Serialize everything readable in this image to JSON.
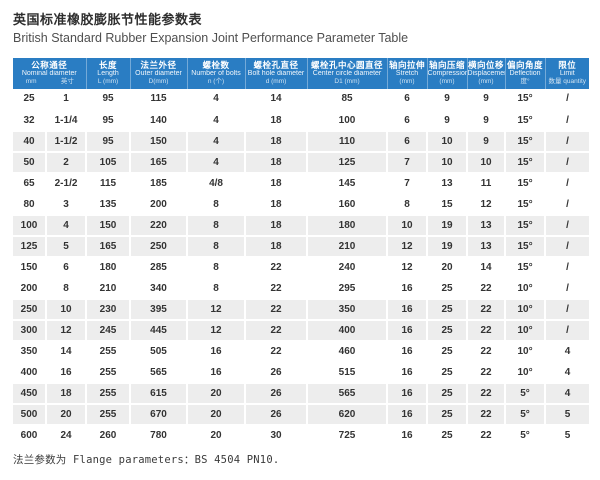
{
  "title": {
    "zh": "英国标准橡胶膨胀节性能参数表",
    "en": "British Standard Rubber Expansion Joint Performance Parameter Table"
  },
  "colors": {
    "header_bg": "#2a7dc3",
    "row_alt_bg": "#ededed",
    "header_text": "#ffffff",
    "body_text": "#333333"
  },
  "table": {
    "header": {
      "nominal": {
        "zh": "公称通径",
        "en": "Nominal diameter",
        "unit_mm": "mm",
        "unit_inch": "英寸"
      },
      "cols": [
        {
          "zh": "长度",
          "en": "Length",
          "unit": "L (mm)"
        },
        {
          "zh": "法兰外径",
          "en": "Outer diameter",
          "unit": "D(mm)"
        },
        {
          "zh": "螺栓数",
          "en": "Number of bolts",
          "unit": "n (个)"
        },
        {
          "zh": "螺栓孔直径",
          "en": "Bolt hole diameter",
          "unit": "d (mm)"
        },
        {
          "zh": "螺栓孔中心圆直径",
          "en": "Center circle diameter",
          "unit": "D1 (mm)"
        },
        {
          "zh": "轴向拉伸",
          "en": "Stretch",
          "unit": "(mm)"
        },
        {
          "zh": "轴向压缩",
          "en": "Compression",
          "unit": "(mm)"
        },
        {
          "zh": "横向位移",
          "en": "Displacement",
          "unit": "(mm)"
        },
        {
          "zh": "偏向角度",
          "en": "Deflection",
          "unit": "度°"
        },
        {
          "zh": "限位",
          "en": "Limit",
          "unit": "数量 quantity"
        }
      ]
    },
    "rows": [
      [
        "25",
        "1",
        "95",
        "115",
        "4",
        "14",
        "85",
        "6",
        "9",
        "9",
        "15°",
        "/"
      ],
      [
        "32",
        "1-1/4",
        "95",
        "140",
        "4",
        "18",
        "100",
        "6",
        "9",
        "9",
        "15°",
        "/"
      ],
      [
        "40",
        "1-1/2",
        "95",
        "150",
        "4",
        "18",
        "110",
        "6",
        "10",
        "9",
        "15°",
        "/"
      ],
      [
        "50",
        "2",
        "105",
        "165",
        "4",
        "18",
        "125",
        "7",
        "10",
        "10",
        "15°",
        "/"
      ],
      [
        "65",
        "2-1/2",
        "115",
        "185",
        "4/8",
        "18",
        "145",
        "7",
        "13",
        "11",
        "15°",
        "/"
      ],
      [
        "80",
        "3",
        "135",
        "200",
        "8",
        "18",
        "160",
        "8",
        "15",
        "12",
        "15°",
        "/"
      ],
      [
        "100",
        "4",
        "150",
        "220",
        "8",
        "18",
        "180",
        "10",
        "19",
        "13",
        "15°",
        "/"
      ],
      [
        "125",
        "5",
        "165",
        "250",
        "8",
        "18",
        "210",
        "12",
        "19",
        "13",
        "15°",
        "/"
      ],
      [
        "150",
        "6",
        "180",
        "285",
        "8",
        "22",
        "240",
        "12",
        "20",
        "14",
        "15°",
        "/"
      ],
      [
        "200",
        "8",
        "210",
        "340",
        "8",
        "22",
        "295",
        "16",
        "25",
        "22",
        "10°",
        "/"
      ],
      [
        "250",
        "10",
        "230",
        "395",
        "12",
        "22",
        "350",
        "16",
        "25",
        "22",
        "10°",
        "/"
      ],
      [
        "300",
        "12",
        "245",
        "445",
        "12",
        "22",
        "400",
        "16",
        "25",
        "22",
        "10°",
        "/"
      ],
      [
        "350",
        "14",
        "255",
        "505",
        "16",
        "22",
        "460",
        "16",
        "25",
        "22",
        "10°",
        "4"
      ],
      [
        "400",
        "16",
        "255",
        "565",
        "16",
        "26",
        "515",
        "16",
        "25",
        "22",
        "10°",
        "4"
      ],
      [
        "450",
        "18",
        "255",
        "615",
        "20",
        "26",
        "565",
        "16",
        "25",
        "22",
        "5°",
        "4"
      ],
      [
        "500",
        "20",
        "255",
        "670",
        "20",
        "26",
        "620",
        "16",
        "25",
        "22",
        "5°",
        "5"
      ],
      [
        "600",
        "24",
        "260",
        "780",
        "20",
        "30",
        "725",
        "16",
        "25",
        "22",
        "5°",
        "5"
      ]
    ]
  },
  "footer": {
    "note": "法兰参数为 Flange parameters：BS 4504 PN10."
  }
}
